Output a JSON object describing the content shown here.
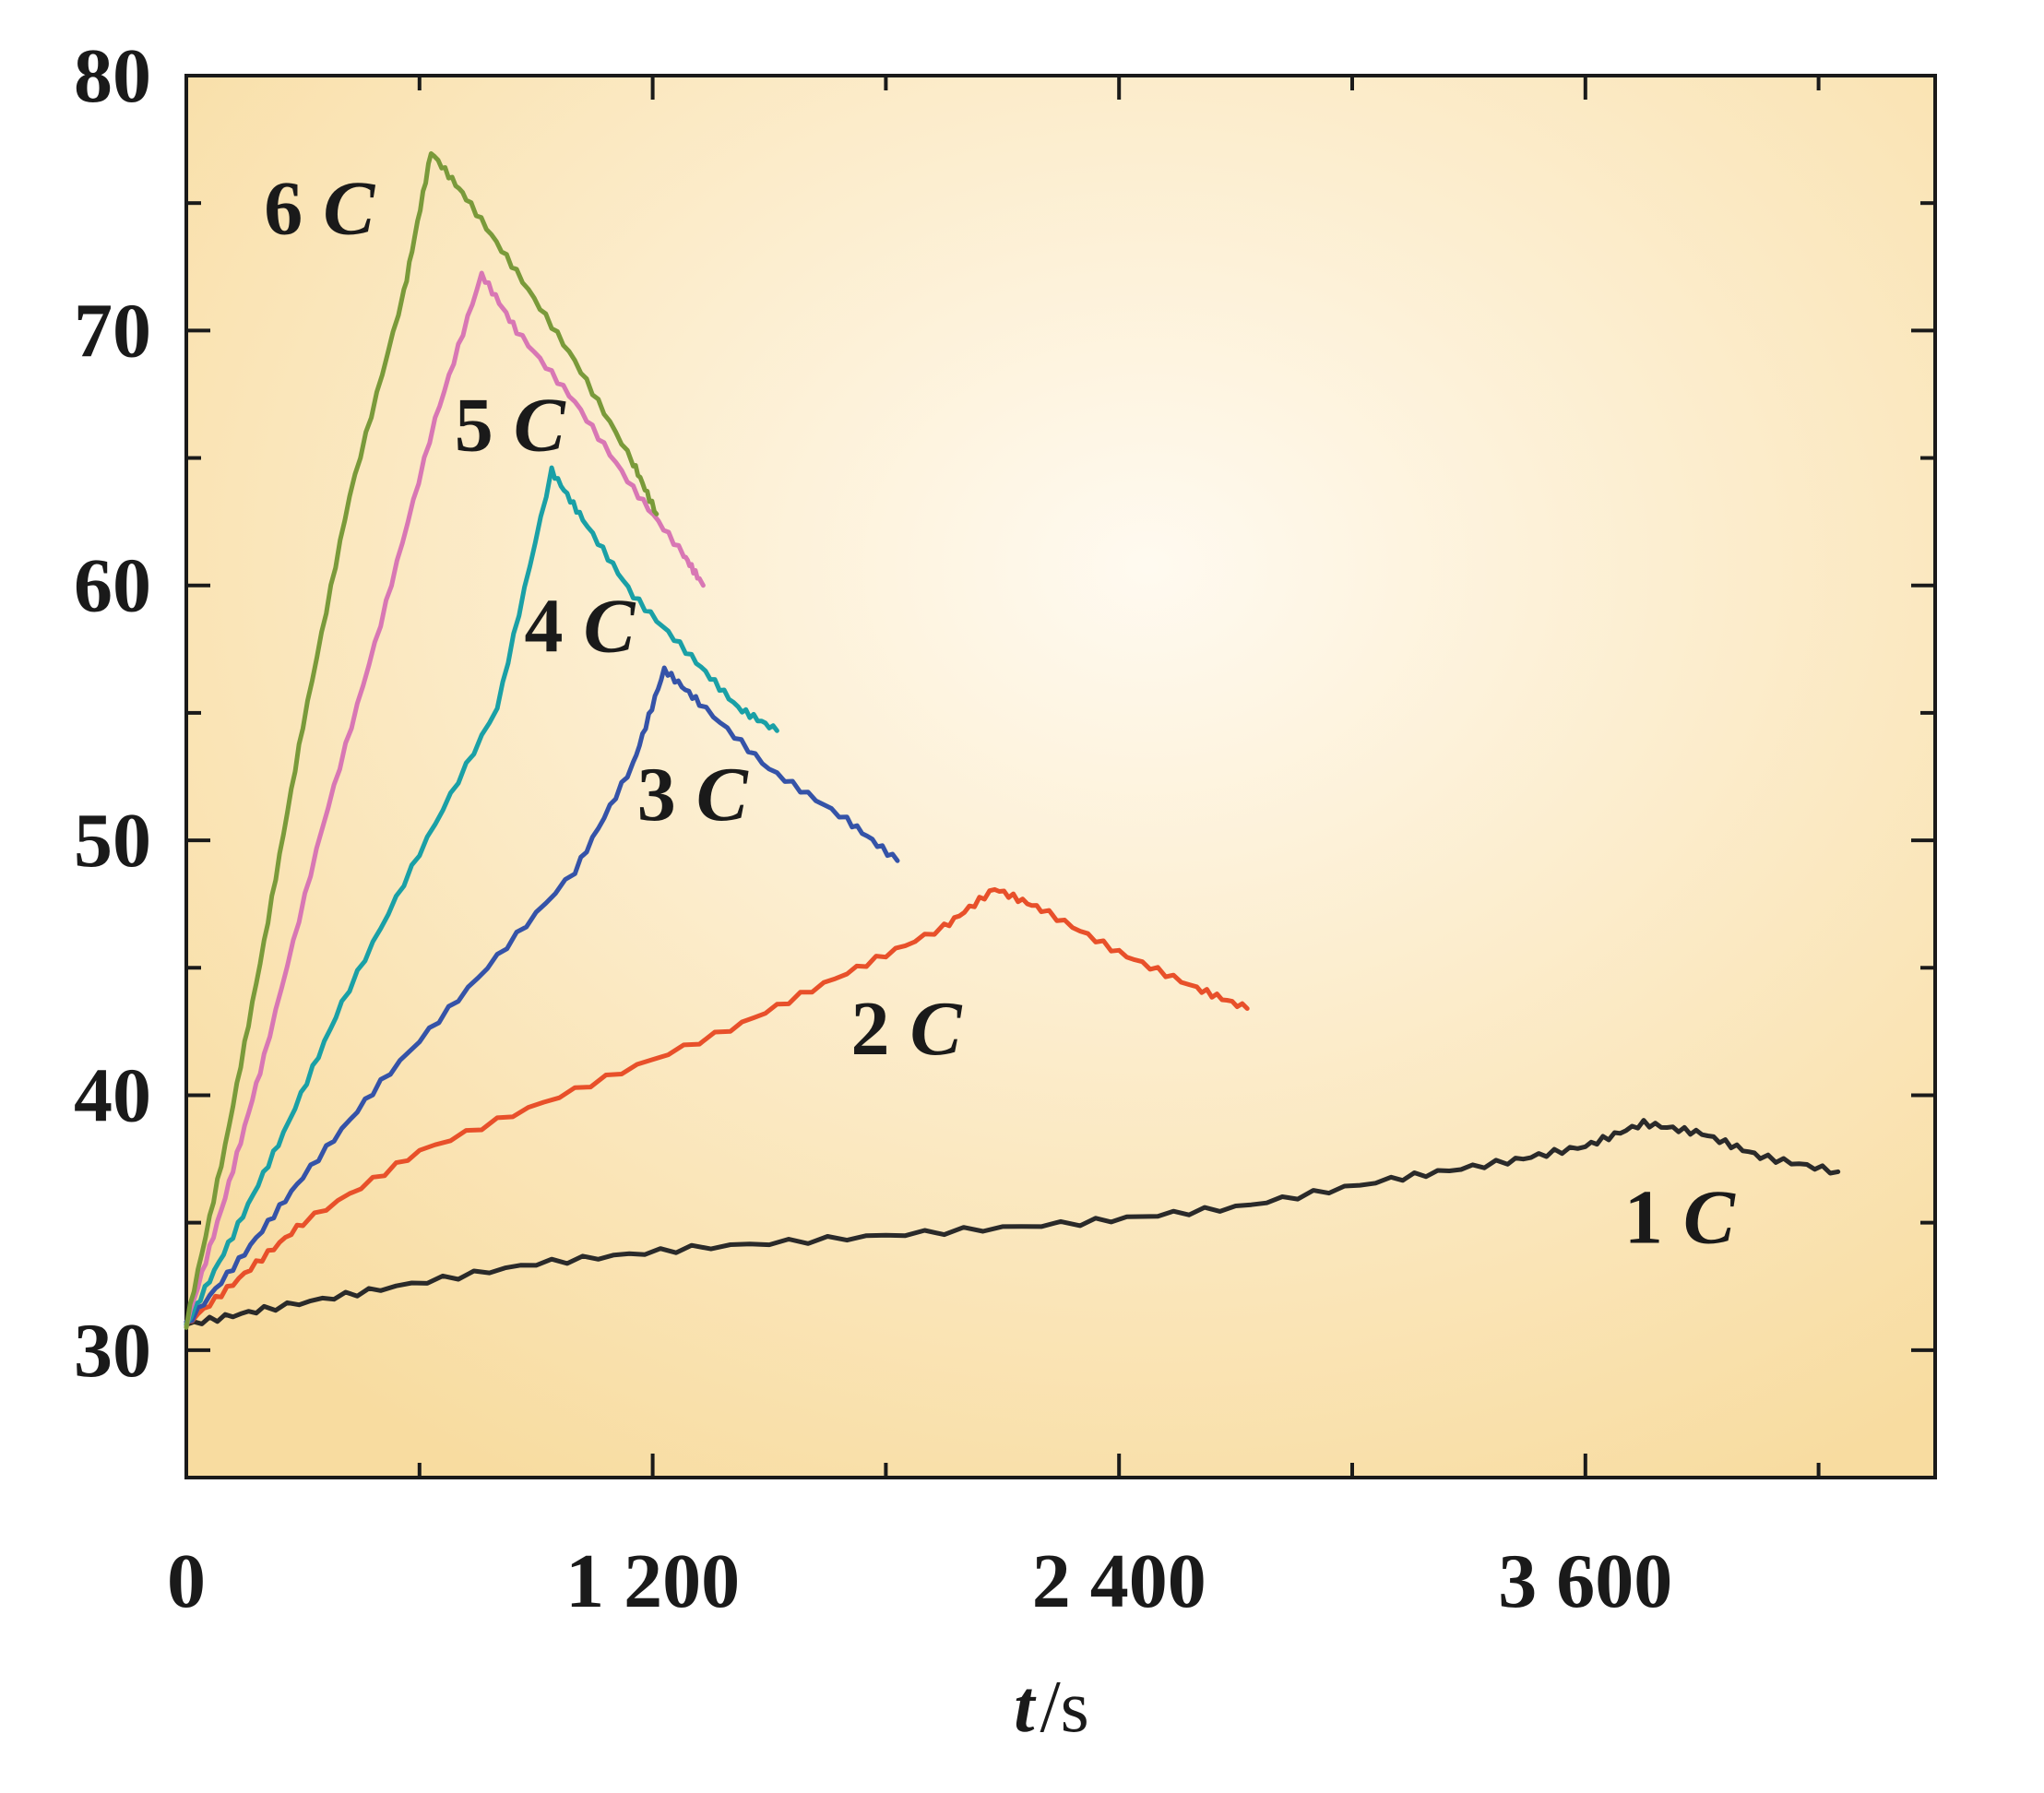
{
  "chart_data": {
    "type": "line",
    "xlabel_var": "t",
    "xlabel_unit": "/s",
    "ylabel": "",
    "xlim": [
      0,
      4500
    ],
    "ylim": [
      25,
      80
    ],
    "x_ticks": [
      0,
      1200,
      2400,
      3600
    ],
    "x_tick_labels": [
      "0",
      "1 200",
      "2 400",
      "3 600"
    ],
    "x_minor_ticks": [
      600,
      1800,
      3000,
      4200
    ],
    "y_ticks": [
      30,
      40,
      50,
      60,
      70,
      80
    ],
    "y_tick_labels": [
      "30",
      "40",
      "50",
      "60",
      "70",
      "80"
    ],
    "y_minor_ticks": [
      35,
      45,
      55,
      65,
      75
    ],
    "grid": false,
    "legend": "none",
    "background_gradient": [
      "#fffaf0",
      "#f8dca0"
    ],
    "series": [
      {
        "name": "1 C",
        "label_num": "1",
        "label_unit": "C",
        "color": "#2a2a2a",
        "points": [
          [
            0,
            31.0
          ],
          [
            200,
            31.6
          ],
          [
            500,
            32.4
          ],
          [
            900,
            33.4
          ],
          [
            1300,
            34.0
          ],
          [
            1800,
            34.5
          ],
          [
            2300,
            35.0
          ],
          [
            2700,
            35.6
          ],
          [
            3100,
            36.7
          ],
          [
            3400,
            37.4
          ],
          [
            3600,
            38.0
          ],
          [
            3750,
            38.9
          ],
          [
            3900,
            38.5
          ],
          [
            4050,
            37.6
          ],
          [
            4250,
            37.0
          ]
        ]
      },
      {
        "name": "2 C",
        "label_num": "2",
        "label_unit": "C",
        "color": "#e8502a",
        "points": [
          [
            0,
            31.0
          ],
          [
            150,
            33.0
          ],
          [
            300,
            35.0
          ],
          [
            600,
            37.8
          ],
          [
            1000,
            40.2
          ],
          [
            1400,
            42.6
          ],
          [
            1700,
            44.8
          ],
          [
            1950,
            46.6
          ],
          [
            2080,
            48.1
          ],
          [
            2200,
            47.3
          ],
          [
            2400,
            45.6
          ],
          [
            2600,
            44.2
          ],
          [
            2730,
            43.4
          ]
        ]
      },
      {
        "name": "3 C",
        "label_num": "3",
        "label_unit": "C",
        "color": "#3553a8",
        "points": [
          [
            0,
            31.0
          ],
          [
            150,
            33.8
          ],
          [
            300,
            36.8
          ],
          [
            500,
            40.5
          ],
          [
            750,
            44.6
          ],
          [
            1000,
            48.8
          ],
          [
            1150,
            53.0
          ],
          [
            1230,
            56.7
          ],
          [
            1320,
            55.4
          ],
          [
            1500,
            52.8
          ],
          [
            1700,
            50.8
          ],
          [
            1830,
            49.2
          ]
        ]
      },
      {
        "name": "4 C",
        "label_num": "4",
        "label_unit": "C",
        "color": "#1aa0a6",
        "points": [
          [
            0,
            31.0
          ],
          [
            120,
            34.5
          ],
          [
            250,
            38.5
          ],
          [
            400,
            43.6
          ],
          [
            600,
            49.5
          ],
          [
            800,
            55.2
          ],
          [
            940,
            64.5
          ],
          [
            1020,
            62.6
          ],
          [
            1150,
            59.6
          ],
          [
            1300,
            57.2
          ],
          [
            1420,
            55.2
          ],
          [
            1520,
            54.3
          ]
        ]
      },
      {
        "name": "5 C",
        "label_num": "5",
        "label_unit": "C",
        "color": "#d877b4",
        "points": [
          [
            0,
            31.0
          ],
          [
            100,
            36.0
          ],
          [
            200,
            41.5
          ],
          [
            350,
            50.5
          ],
          [
            500,
            58.5
          ],
          [
            640,
            66.5
          ],
          [
            760,
            72.2
          ],
          [
            850,
            70.0
          ],
          [
            1000,
            67.2
          ],
          [
            1150,
            63.8
          ],
          [
            1280,
            61.2
          ],
          [
            1330,
            60.0
          ]
        ]
      },
      {
        "name": "6 C",
        "label_num": "6",
        "label_unit": "C",
        "color": "#7a9a3a",
        "points": [
          [
            0,
            31.0
          ],
          [
            100,
            38.0
          ],
          [
            200,
            46.0
          ],
          [
            300,
            54.5
          ],
          [
            420,
            63.5
          ],
          [
            560,
            71.5
          ],
          [
            630,
            77.0
          ],
          [
            720,
            75.2
          ],
          [
            850,
            72.3
          ],
          [
            1000,
            68.8
          ],
          [
            1150,
            64.8
          ],
          [
            1210,
            62.8
          ]
        ]
      }
    ]
  },
  "series_label_positions_data": [
    {
      "series": "1 C",
      "x": 3700,
      "y": 34.2
    },
    {
      "series": "2 C",
      "x": 1710,
      "y": 41.6
    },
    {
      "series": "3 C",
      "x": 1160,
      "y": 50.8
    },
    {
      "series": "4 C",
      "x": 870,
      "y": 57.4
    },
    {
      "series": "5 C",
      "x": 690,
      "y": 65.3
    },
    {
      "series": "6 C",
      "x": 200,
      "y": 73.8
    }
  ]
}
